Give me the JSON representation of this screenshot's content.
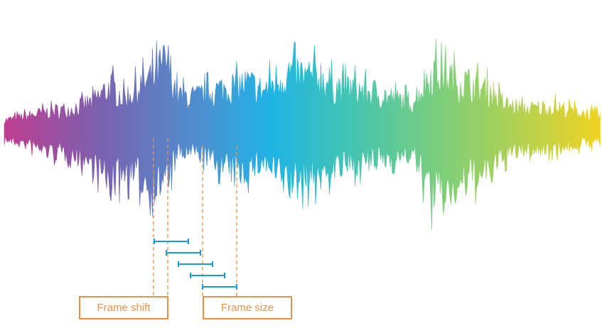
{
  "labels": {
    "frame_shift": "Frame shift",
    "frame_size": "Frame size"
  },
  "colors": {
    "gradient": [
      "#c23b8f",
      "#7a62b0",
      "#4e8fcf",
      "#1fb4e6",
      "#42c4b3",
      "#7fcf78",
      "#b9d24c",
      "#f2d320"
    ],
    "frame_bar": "#1a9bd7",
    "annotation": "#e8914a"
  },
  "frames": {
    "count": 5
  }
}
